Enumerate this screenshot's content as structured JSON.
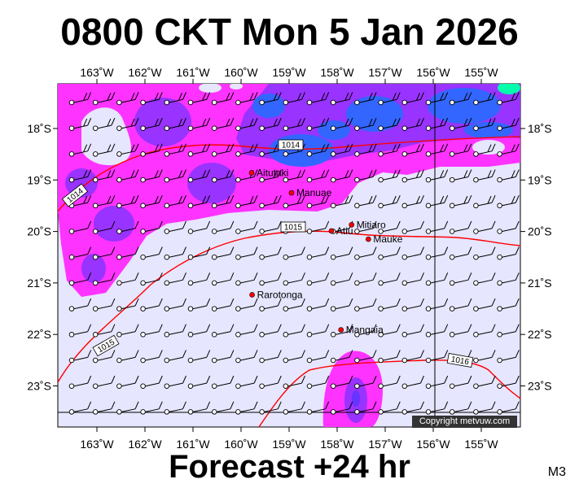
{
  "title": "0800 CKT Mon 5 Jan 2026",
  "footer": "Forecast +24 hr",
  "panel_id": "M3",
  "copyright": "Copyright metvuw.com",
  "map": {
    "lon_labels": [
      "163˚W",
      "162˚W",
      "161˚W",
      "160˚W",
      "159˚W",
      "158˚W",
      "157˚W",
      "156˚W",
      "155˚W"
    ],
    "lat_labels": [
      "18˚S",
      "19˚S",
      "20˚S",
      "21˚S",
      "22˚S",
      "23˚S"
    ],
    "places": [
      {
        "name": "Aitutaki",
        "lon": -159.78,
        "lat": -18.86
      },
      {
        "name": "Manuae",
        "lon": -158.95,
        "lat": -19.25
      },
      {
        "name": "Mitiaro",
        "lon": -157.7,
        "lat": -19.87
      },
      {
        "name": "Atiu",
        "lon": -158.12,
        "lat": -19.99
      },
      {
        "name": "Mauke",
        "lon": -157.35,
        "lat": -20.15
      },
      {
        "name": "Rarotonga",
        "lon": -159.77,
        "lat": -21.23
      },
      {
        "name": "Mangaia",
        "lon": -157.92,
        "lat": -21.91
      }
    ],
    "isobar_labels": [
      "1014",
      "1014",
      "1015",
      "1015",
      "1016"
    ],
    "colors": {
      "background": "#e6e6ff",
      "rain_light": "#ff33ff",
      "rain_medium": "#9933ff",
      "rain_heavy": "#3366ff",
      "rain_extreme": "#00ffaa",
      "isobar": "#ff0000",
      "place_marker": "#ff0000"
    }
  }
}
